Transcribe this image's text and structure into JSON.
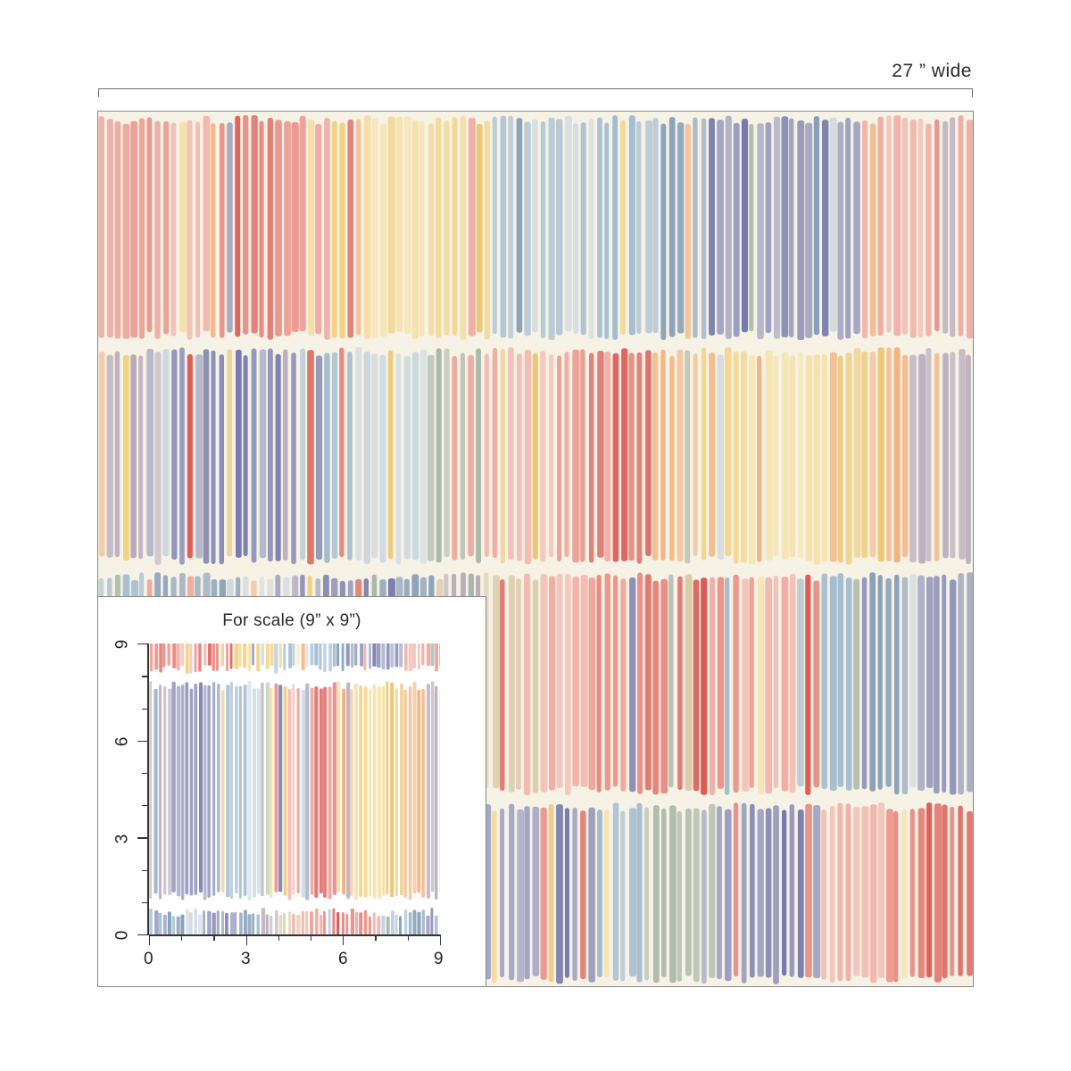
{
  "header": {
    "width_label": "27 ” wide"
  },
  "scale_panel": {
    "title": "For scale (9” x 9”)",
    "x_ticks": [
      "0",
      "3",
      "6",
      "9"
    ],
    "y_ticks": [
      "0",
      "3",
      "6",
      "9"
    ]
  },
  "palette": [
    "#e8837a",
    "#f0a99f",
    "#d9504a",
    "#f2cf7a",
    "#f5e0a3",
    "#9eb9cf",
    "#7e9ab5",
    "#8a8fb8",
    "#6e74a8",
    "#a6b4a4",
    "#c9d6de",
    "#f1b07a",
    "#e9c46a",
    "#b5a7b9",
    "#d8c9a3"
  ]
}
